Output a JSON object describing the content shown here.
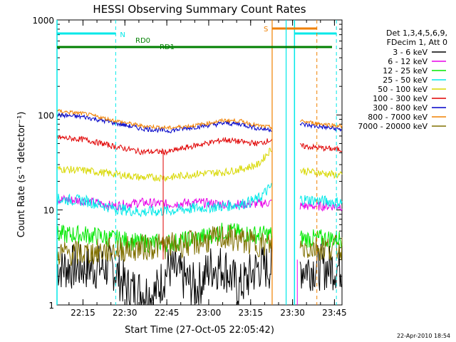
{
  "title": "HESSI Observing Summary Count Rates",
  "footer_date": "22-Apr-2010 18:54",
  "colors": {
    "3-6": "#000000",
    "6-12": "#e800e8",
    "12-25": "#00e800",
    "25-50": "#00e8e8",
    "50-100": "#d8d800",
    "100-300": "#e00000",
    "300-800": "#0000c8",
    "800-7000": "#f08000",
    "7000-20000": "#807000",
    "attenuator_lines": "#00e8e8",
    "rd_line": "#008000",
    "saa_marker": "#f08000"
  },
  "chart_data": {
    "type": "line",
    "title": "HESSI Observing Summary Count Rates",
    "xlabel": "Start Time (27-Oct-05 22:05:42)",
    "ylabel": "Count Rate (s⁻¹ detector⁻¹)",
    "yscale": "log",
    "ylim": [
      1,
      1000
    ],
    "xlim_minutes_after_2205": [
      0,
      102
    ],
    "xtick_labels": [
      "22:15",
      "22:30",
      "22:45",
      "23:00",
      "23:15",
      "23:30",
      "23:45"
    ],
    "ytick_labels": [
      "1",
      "10",
      "100",
      "1000"
    ],
    "legend": {
      "position": "right",
      "header": [
        "Det 1,3,4,5,6,9,",
        "FDecim 1, Att 0"
      ],
      "entries": [
        "3 - 6 keV",
        "6 - 12 keV",
        "12 - 25 keV",
        "25 - 50 keV",
        "50 - 100 keV",
        "100 - 300 keV",
        "300 - 800 keV",
        "800 - 7000 keV",
        "7000 - 20000 keV"
      ]
    },
    "annotations": {
      "night_label": "N",
      "saa_label": "S",
      "rd0_label": "RD0",
      "rd1_label": "RD1"
    },
    "series": [
      {
        "name": "3 - 6 keV",
        "key": "3-6",
        "x": [
          0,
          10,
          20,
          25,
          35,
          40,
          50,
          55,
          60,
          65,
          72,
          77,
          87,
          102
        ],
        "y": [
          2.5,
          2.5,
          2.5,
          1.5,
          1.3,
          2.5,
          1.5,
          2.5,
          2.5,
          1.5,
          2.5,
          2.5,
          2.5,
          2.5
        ]
      },
      {
        "name": "6 - 12 keV",
        "key": "6-12",
        "x": [
          0,
          10,
          20,
          30,
          40,
          50,
          60,
          70,
          77,
          87,
          102
        ],
        "y": [
          13,
          12.5,
          11,
          12,
          11.5,
          12,
          11.5,
          11.5,
          12,
          11,
          11
        ]
      },
      {
        "name": "12 - 25 keV",
        "key": "12-25",
        "x": [
          0,
          10,
          20,
          30,
          40,
          50,
          60,
          70,
          77,
          87,
          102
        ],
        "y": [
          5.5,
          5.5,
          5,
          4.5,
          4.5,
          5,
          6,
          5.5,
          5.5,
          5,
          5
        ]
      },
      {
        "name": "25 - 50 keV",
        "key": "25-50",
        "x": [
          0,
          10,
          20,
          30,
          40,
          50,
          60,
          66,
          72,
          77,
          87,
          102
        ],
        "y": [
          13,
          12.5,
          10.5,
          9.5,
          9.8,
          10.5,
          11,
          11.5,
          13,
          18,
          13,
          12
        ]
      },
      {
        "name": "50 - 100 keV",
        "key": "50-100",
        "x": [
          0,
          10,
          20,
          30,
          40,
          50,
          60,
          66,
          72,
          77,
          87,
          102
        ],
        "y": [
          27,
          26,
          24,
          22,
          22,
          24,
          25,
          27,
          30,
          45,
          26,
          23
        ]
      },
      {
        "name": "100 - 300 keV",
        "key": "100-300",
        "x": [
          0,
          10,
          20,
          30,
          40,
          50,
          60,
          66,
          72,
          77,
          87,
          102
        ],
        "y": [
          58,
          55,
          47,
          41,
          41,
          48,
          55,
          52,
          50,
          55,
          47,
          43
        ]
      },
      {
        "name": "300 - 800 keV",
        "key": "300-800",
        "x": [
          0,
          10,
          20,
          30,
          40,
          50,
          60,
          66,
          72,
          77,
          87,
          102
        ],
        "y": [
          100,
          95,
          83,
          72,
          68,
          75,
          82,
          80,
          72,
          70,
          80,
          70
        ]
      },
      {
        "name": "800 - 7000 keV",
        "key": "800-7000",
        "x": [
          0,
          10,
          20,
          30,
          40,
          50,
          60,
          66,
          72,
          77,
          87,
          102
        ],
        "y": [
          110,
          103,
          88,
          77,
          73,
          78,
          88,
          86,
          77,
          74,
          86,
          76
        ]
      },
      {
        "name": "7000 - 20000 keV",
        "key": "7000-20000",
        "x": [
          0,
          10,
          20,
          30,
          40,
          50,
          60,
          70,
          77,
          87,
          102
        ],
        "y": [
          3.5,
          3.5,
          3.8,
          4,
          4.2,
          4.5,
          5.2,
          4.5,
          4.2,
          4,
          4
        ]
      }
    ],
    "events": {
      "night_starts": [
        0,
        85
      ],
      "night_ends": [
        21,
        100
      ],
      "saa_start": 77,
      "saa_end": 93,
      "data_gaps": [
        [
          77,
          87
        ]
      ],
      "spike_times": [
        38
      ]
    }
  }
}
